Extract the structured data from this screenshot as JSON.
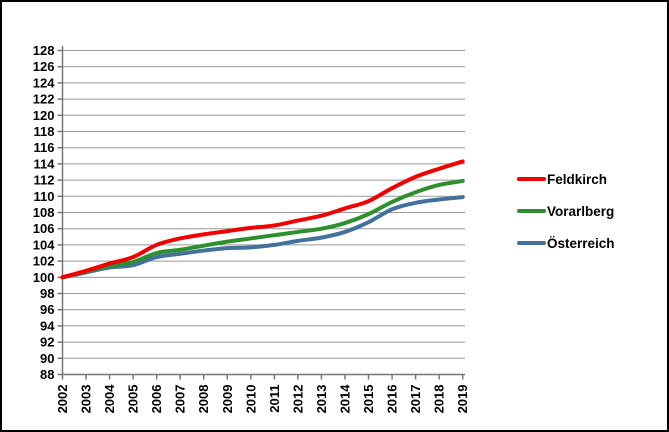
{
  "chart_data": {
    "type": "line",
    "title": "",
    "x_labels": [
      "2002",
      "2003",
      "2004",
      "2005",
      "2006",
      "2007",
      "2008",
      "2009",
      "2010",
      "2011",
      "2012",
      "2013",
      "2014",
      "2015",
      "2016",
      "2017",
      "2018",
      "2019"
    ],
    "series": [
      {
        "name": "Feldkirch",
        "color": "#f00000",
        "values": [
          100,
          100.8,
          101.7,
          102.5,
          104.0,
          104.8,
          105.3,
          105.7,
          106.1,
          106.4,
          107.0,
          107.6,
          108.5,
          109.4,
          111.0,
          112.4,
          113.4,
          114.3
        ]
      },
      {
        "name": "Vorarlberg",
        "color": "#2e8f2e",
        "values": [
          100,
          100.7,
          101.4,
          101.9,
          103.0,
          103.4,
          103.9,
          104.4,
          104.8,
          105.2,
          105.6,
          106.0,
          106.7,
          107.8,
          109.3,
          110.5,
          111.4,
          111.9
        ]
      },
      {
        "name": "Österreich",
        "color": "#41719c",
        "values": [
          100,
          100.6,
          101.2,
          101.5,
          102.5,
          102.9,
          103.3,
          103.6,
          103.7,
          104.0,
          104.5,
          104.9,
          105.6,
          106.8,
          108.4,
          109.2,
          109.6,
          109.9
        ]
      }
    ],
    "ylim": [
      88,
      128
    ],
    "ytick_step": 2,
    "grid": "horizontal",
    "legend_position": "right",
    "colors": {
      "grid": "#999999",
      "axis": "#777777",
      "tick_label": "#000000",
      "background": "#ffffff",
      "border": "#000000"
    }
  }
}
